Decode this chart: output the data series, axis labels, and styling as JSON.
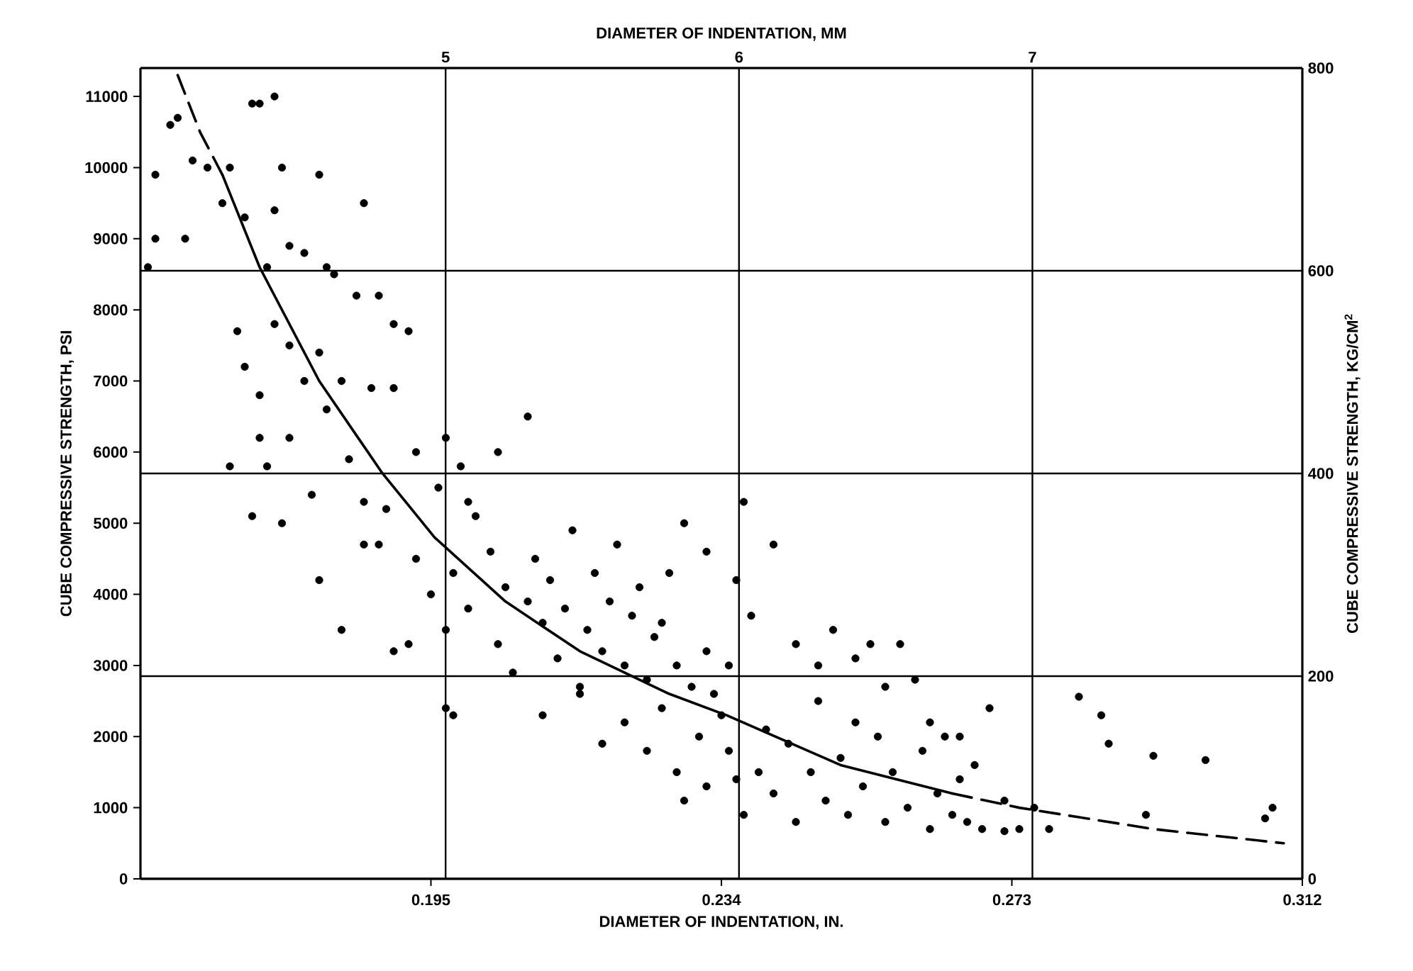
{
  "chart_data": {
    "type": "scatter",
    "xlabel": "DIAMETER OF INDENTATION, IN.",
    "x2label": "DIAMETER OF INDENTATION, MM",
    "ylabel": "CUBE COMPRESSIVE STRENGTH, PSI",
    "y2label": "CUBE COMPRESSIVE STRENGTH, KG/CM$^{2}$",
    "xlim": [
      0.156,
      0.312
    ],
    "xticks": [
      0.195,
      0.234,
      0.273,
      0.312
    ],
    "x2lim": [
      3.96,
      7.92
    ],
    "x2ticks": [
      5,
      6,
      7
    ],
    "ylim": [
      0,
      11400
    ],
    "yticks": [
      0,
      1000,
      2000,
      3000,
      4000,
      5000,
      6000,
      7000,
      8000,
      9000,
      10000,
      11000
    ],
    "y2lim": [
      0,
      800
    ],
    "y2ticks": [
      0,
      200,
      400,
      600,
      800
    ],
    "grid": true,
    "series": [
      {
        "color": "#000000",
        "marker": "circle",
        "x": [
          0.158,
          0.158,
          0.157,
          0.16,
          0.161,
          0.162,
          0.163,
          0.165,
          0.167,
          0.17,
          0.171,
          0.172,
          0.174,
          0.168,
          0.175,
          0.174,
          0.173,
          0.176,
          0.178,
          0.181,
          0.18,
          0.186,
          0.182,
          0.169,
          0.17,
          0.172,
          0.174,
          0.176,
          0.178,
          0.18,
          0.183,
          0.185,
          0.188,
          0.19,
          0.192,
          0.19,
          0.187,
          0.181,
          0.176,
          0.172,
          0.173,
          0.168,
          0.171,
          0.175,
          0.179,
          0.184,
          0.186,
          0.189,
          0.193,
          0.197,
          0.199,
          0.208,
          0.204,
          0.196,
          0.2,
          0.18,
          0.183,
          0.186,
          0.188,
          0.19,
          0.192,
          0.193,
          0.195,
          0.197,
          0.198,
          0.2,
          0.201,
          0.203,
          0.204,
          0.205,
          0.206,
          0.208,
          0.209,
          0.21,
          0.211,
          0.212,
          0.213,
          0.214,
          0.215,
          0.216,
          0.217,
          0.218,
          0.219,
          0.22,
          0.221,
          0.222,
          0.223,
          0.224,
          0.225,
          0.226,
          0.227,
          0.228,
          0.23,
          0.232,
          0.233,
          0.229,
          0.232,
          0.236,
          0.237,
          0.241,
          0.238,
          0.235,
          0.197,
          0.198,
          0.21,
          0.215,
          0.218,
          0.221,
          0.224,
          0.226,
          0.228,
          0.229,
          0.231,
          0.232,
          0.234,
          0.235,
          0.236,
          0.237,
          0.239,
          0.24,
          0.241,
          0.243,
          0.244,
          0.246,
          0.247,
          0.248,
          0.25,
          0.251,
          0.252,
          0.253,
          0.254,
          0.255,
          0.256,
          0.257,
          0.258,
          0.259,
          0.26,
          0.261,
          0.262,
          0.263,
          0.264,
          0.265,
          0.266,
          0.267,
          0.268,
          0.269,
          0.27,
          0.266,
          0.244,
          0.247,
          0.249,
          0.252,
          0.256,
          0.262,
          0.272,
          0.274,
          0.276,
          0.282,
          0.285,
          0.286,
          0.292,
          0.299,
          0.308,
          0.307,
          0.291,
          0.278,
          0.272
        ],
        "values": [
          9900,
          9000,
          8600,
          10600,
          10700,
          9000,
          10100,
          10000,
          9500,
          9300,
          10900,
          10900,
          11000,
          10000,
          10000,
          9400,
          8600,
          8900,
          8800,
          8600,
          9900,
          9500,
          8500,
          7700,
          7200,
          6800,
          7800,
          7500,
          7000,
          7400,
          7000,
          8200,
          8200,
          7800,
          7700,
          6900,
          6900,
          6600,
          6200,
          6200,
          5800,
          5800,
          5100,
          5000,
          5400,
          5900,
          5300,
          5200,
          6000,
          6200,
          5800,
          6500,
          6000,
          5500,
          5300,
          4200,
          3500,
          4700,
          4700,
          3200,
          3300,
          4500,
          4000,
          3500,
          4300,
          3800,
          5100,
          4600,
          3300,
          4100,
          2900,
          3900,
          4500,
          3600,
          4200,
          3100,
          3800,
          4900,
          2700,
          3500,
          4300,
          3200,
          3900,
          4700,
          3000,
          3700,
          4100,
          2800,
          3400,
          3600,
          4300,
          3000,
          2700,
          3200,
          2600,
          5000,
          4600,
          4200,
          5300,
          4700,
          3700,
          3000,
          2400,
          2300,
          2300,
          2600,
          1900,
          2200,
          1800,
          2400,
          1500,
          1100,
          2000,
          1300,
          2300,
          1800,
          1400,
          900,
          1500,
          2100,
          1200,
          1900,
          800,
          1500,
          2500,
          1100,
          1700,
          900,
          2200,
          1300,
          3300,
          2000,
          800,
          1500,
          3300,
          1000,
          2800,
          1800,
          700,
          1200,
          2000,
          900,
          1400,
          800,
          1600,
          700,
          2400,
          2000,
          3300,
          3000,
          3500,
          3100,
          2700,
          2200,
          1100,
          700,
          1000,
          2560,
          2300,
          1900,
          1730,
          1670,
          1000,
          850,
          900,
          700,
          670
        ]
      },
      {
        "type": "line",
        "color": "#000000",
        "line_style": "dashed",
        "marker": "none",
        "x": [
          0.161,
          0.164,
          0.167
        ],
        "values": [
          11300,
          10500,
          9900
        ]
      },
      {
        "type": "line",
        "color": "#000000",
        "line_style": "solid",
        "marker": "none",
        "x": [
          0.167,
          0.172,
          0.18,
          0.1885,
          0.1955,
          0.205,
          0.215,
          0.227,
          0.2347,
          0.25,
          0.265
        ],
        "values": [
          9900,
          8600,
          7000,
          5700,
          4800,
          3900,
          3200,
          2600,
          2300,
          1600,
          1200
        ]
      },
      {
        "type": "line",
        "color": "#000000",
        "line_style": "dashed",
        "marker": "none",
        "x": [
          0.265,
          0.274,
          0.292,
          0.3095
        ],
        "values": [
          1200,
          1000,
          700,
          500
        ]
      }
    ]
  }
}
